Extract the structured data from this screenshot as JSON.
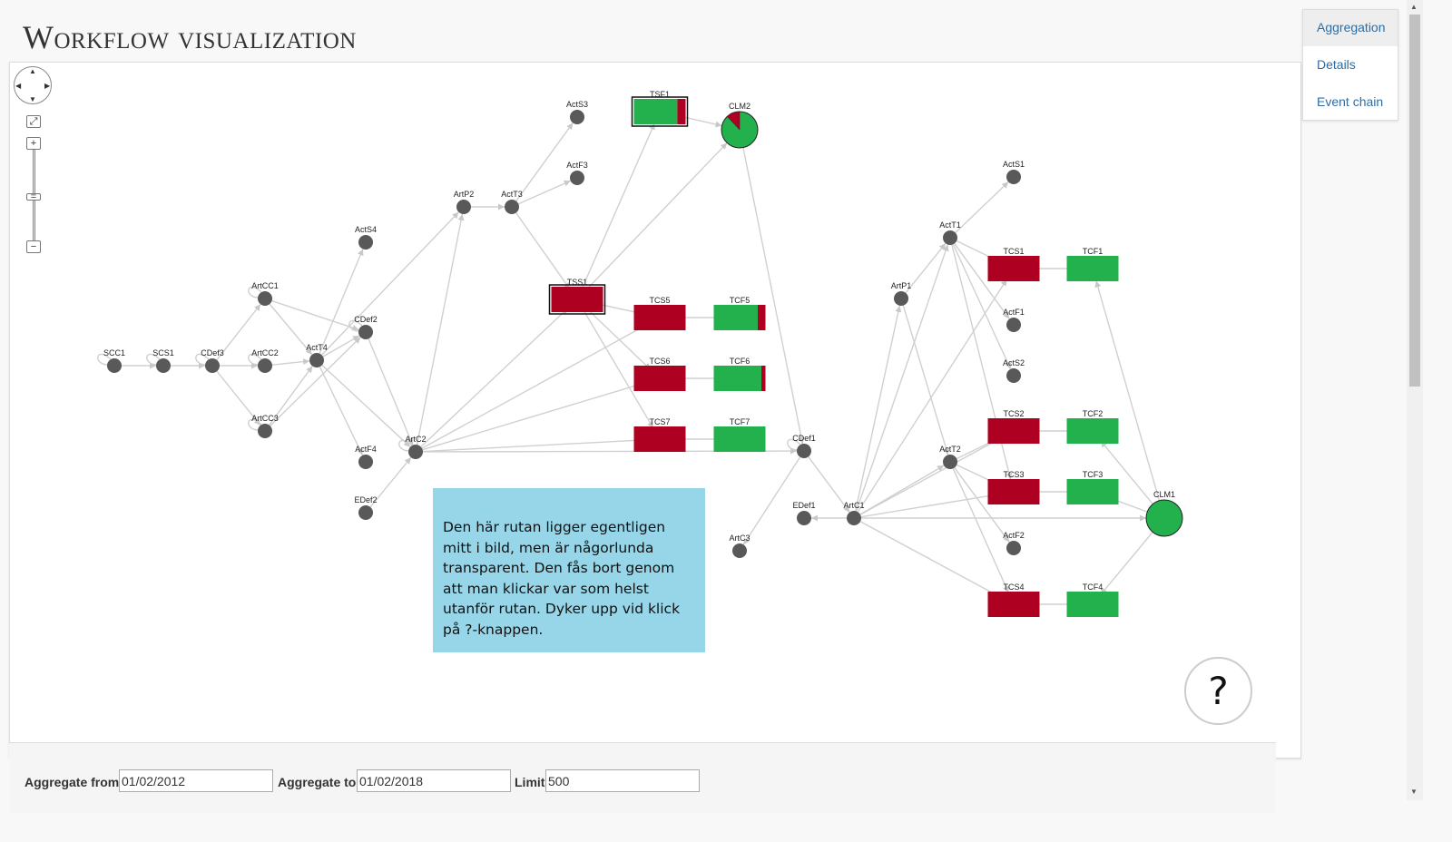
{
  "page": {
    "title": "Workflow visualization"
  },
  "tabs": [
    {
      "label": "Aggregation",
      "active": true
    },
    {
      "label": "Details",
      "active": false
    },
    {
      "label": "Event chain",
      "active": false
    }
  ],
  "navigation": {
    "pan_icon": "pan-arrows-icon",
    "fit_icon": "expand-icon",
    "zoom_in": "+",
    "zoom_out": "−"
  },
  "help": {
    "text": "Den här rutan ligger egentligen mitt i bild, men är någorlunda transparent. Den fås bort genom att man klickar var som helst utanför rutan. Dyker upp vid klick på ?-knappen.",
    "button_label": "?"
  },
  "filters": {
    "from_label": "Aggregate from",
    "from_value": "01/02/2012",
    "to_label": "Aggregate to",
    "to_value": "01/02/2018",
    "limit_label": "Limit",
    "limit_value": "500"
  },
  "colors": {
    "red": "#ae0122",
    "green": "#22b14c",
    "gray": "#595959",
    "edge": "#d0d0d0",
    "help_bg": "#85cfe4"
  },
  "graph": {
    "nodes": [
      {
        "id": "SCC1",
        "type": "circle"
      },
      {
        "id": "SCS1",
        "type": "circle"
      },
      {
        "id": "CDef3",
        "type": "circle"
      },
      {
        "id": "ArtCC2",
        "type": "circle"
      },
      {
        "id": "ArtCC1",
        "type": "circle"
      },
      {
        "id": "ArtCC3",
        "type": "circle"
      },
      {
        "id": "ActT4",
        "type": "circle"
      },
      {
        "id": "CDef2",
        "type": "circle"
      },
      {
        "id": "ActS4",
        "type": "circle"
      },
      {
        "id": "ActF4",
        "type": "circle"
      },
      {
        "id": "EDef2",
        "type": "circle"
      },
      {
        "id": "ArtC2",
        "type": "circle"
      },
      {
        "id": "ArtP2",
        "type": "circle"
      },
      {
        "id": "ActT3",
        "type": "circle"
      },
      {
        "id": "ActS3",
        "type": "circle"
      },
      {
        "id": "ActF3",
        "type": "circle"
      },
      {
        "id": "TSF1",
        "type": "rect",
        "green_share": 0.84
      },
      {
        "id": "CLM2",
        "type": "big",
        "green_share": 0.88
      },
      {
        "id": "TSS1",
        "type": "rect",
        "green_share": 0
      },
      {
        "id": "TCS5",
        "type": "rect",
        "green_share": 0
      },
      {
        "id": "TCF5",
        "type": "rect",
        "green_share": 0.85
      },
      {
        "id": "TCS6",
        "type": "rect",
        "green_share": 0
      },
      {
        "id": "TCF6",
        "type": "rect",
        "green_share": 0.92
      },
      {
        "id": "TCS7",
        "type": "rect",
        "green_share": 0
      },
      {
        "id": "TCF7",
        "type": "rect",
        "green_share": 1
      },
      {
        "id": "CDef1",
        "type": "circle"
      },
      {
        "id": "ArtC3",
        "type": "circle"
      },
      {
        "id": "EDef1",
        "type": "circle"
      },
      {
        "id": "ArtC1",
        "type": "circle"
      },
      {
        "id": "ArtP1",
        "type": "circle"
      },
      {
        "id": "ActT1",
        "type": "circle"
      },
      {
        "id": "ActS1",
        "type": "circle"
      },
      {
        "id": "TCS1",
        "type": "rect",
        "green_share": 0
      },
      {
        "id": "TCF1",
        "type": "rect",
        "green_share": 1
      },
      {
        "id": "ActF1",
        "type": "circle"
      },
      {
        "id": "ActS2",
        "type": "circle"
      },
      {
        "id": "TCS2",
        "type": "rect",
        "green_share": 0
      },
      {
        "id": "TCF2",
        "type": "rect",
        "green_share": 1
      },
      {
        "id": "ActT2",
        "type": "circle"
      },
      {
        "id": "TCS3",
        "type": "rect",
        "green_share": 0
      },
      {
        "id": "TCF3",
        "type": "rect",
        "green_share": 1
      },
      {
        "id": "ActF2",
        "type": "circle"
      },
      {
        "id": "TCS4",
        "type": "rect",
        "green_share": 0
      },
      {
        "id": "TCF4",
        "type": "rect",
        "green_share": 1
      },
      {
        "id": "CLM1",
        "type": "big",
        "green_share": 1
      }
    ],
    "edges": [
      [
        "SCC1",
        "SCS1"
      ],
      [
        "SCS1",
        "CDef3"
      ],
      [
        "CDef3",
        "ArtCC2"
      ],
      [
        "CDef3",
        "ArtCC1"
      ],
      [
        "CDef3",
        "ArtCC3"
      ],
      [
        "ArtCC2",
        "ActT4"
      ],
      [
        "ArtCC1",
        "CDef2"
      ],
      [
        "ArtCC3",
        "CDef2"
      ],
      [
        "ArtCC1",
        "ActT4"
      ],
      [
        "ArtCC3",
        "ActT4"
      ],
      [
        "ActT4",
        "CDef2"
      ],
      [
        "ActT4",
        "ActS4"
      ],
      [
        "ActT4",
        "ActF4"
      ],
      [
        "ActT4",
        "ArtC2"
      ],
      [
        "ActT4",
        "ArtP2"
      ],
      [
        "CDef2",
        "ArtC2"
      ],
      [
        "EDef2",
        "ArtC2"
      ],
      [
        "ArtC2",
        "ArtP2"
      ],
      [
        "ArtC2",
        "TSS1"
      ],
      [
        "ArtC2",
        "TCS5"
      ],
      [
        "ArtC2",
        "TCS6"
      ],
      [
        "ArtC2",
        "TCS7"
      ],
      [
        "ArtC2",
        "CDef1"
      ],
      [
        "ArtP2",
        "ActT3"
      ],
      [
        "ActT3",
        "ActS3"
      ],
      [
        "ActT3",
        "ActF3"
      ],
      [
        "ActT3",
        "TSS1"
      ],
      [
        "TSS1",
        "TSF1"
      ],
      [
        "TSS1",
        "CLM2"
      ],
      [
        "TSS1",
        "TCS5"
      ],
      [
        "TSS1",
        "TCS6"
      ],
      [
        "TSS1",
        "TCS7"
      ],
      [
        "TSF1",
        "CLM2"
      ],
      [
        "CLM2",
        "CDef1"
      ],
      [
        "TCS5",
        "TCF5"
      ],
      [
        "TCS6",
        "TCF6"
      ],
      [
        "TCS7",
        "TCF7"
      ],
      [
        "CDef1",
        "ArtC3"
      ],
      [
        "CDef1",
        "ArtC1"
      ],
      [
        "ArtC1",
        "EDef1"
      ],
      [
        "ArtC1",
        "ArtP1"
      ],
      [
        "ArtC1",
        "ActT1"
      ],
      [
        "ArtC1",
        "ActT2"
      ],
      [
        "ArtC1",
        "TCS1"
      ],
      [
        "ArtC1",
        "TCS2"
      ],
      [
        "ArtC1",
        "TCS3"
      ],
      [
        "ArtC1",
        "TCS4"
      ],
      [
        "ArtC1",
        "CLM1"
      ],
      [
        "ArtP1",
        "ActT1"
      ],
      [
        "ArtP1",
        "ActT2"
      ],
      [
        "ActT1",
        "ActS1"
      ],
      [
        "ActT1",
        "TCS1"
      ],
      [
        "ActT1",
        "ActF1"
      ],
      [
        "ActT1",
        "ActS2"
      ],
      [
        "ActT1",
        "TCS3"
      ],
      [
        "ActT2",
        "TCS2"
      ],
      [
        "ActT2",
        "TCS3"
      ],
      [
        "ActT2",
        "ActF2"
      ],
      [
        "ActT2",
        "TCS4"
      ],
      [
        "TCS1",
        "TCF1"
      ],
      [
        "TCS2",
        "TCF2"
      ],
      [
        "TCS3",
        "TCF3"
      ],
      [
        "TCS4",
        "TCF4"
      ],
      [
        "CLM1",
        "TCF1"
      ],
      [
        "CLM1",
        "TCF2"
      ],
      [
        "CLM1",
        "TCF3"
      ],
      [
        "CLM1",
        "TCF4"
      ]
    ]
  }
}
